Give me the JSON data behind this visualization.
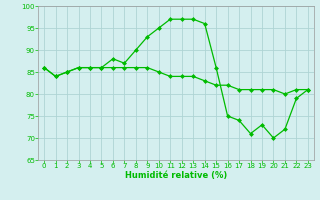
{
  "title": "",
  "xlabel": "Humidité relative (%)",
  "ylabel": "",
  "background_color": "#d4efef",
  "grid_color": "#aed4d4",
  "line_color": "#00bb00",
  "xlim_min": -0.5,
  "xlim_max": 23.5,
  "ylim_min": 65,
  "ylim_max": 100,
  "yticks": [
    65,
    70,
    75,
    80,
    85,
    90,
    95,
    100
  ],
  "xticks": [
    0,
    1,
    2,
    3,
    4,
    5,
    6,
    7,
    8,
    9,
    10,
    11,
    12,
    13,
    14,
    15,
    16,
    17,
    18,
    19,
    20,
    21,
    22,
    23
  ],
  "series1_x": [
    0,
    1,
    2,
    3,
    4,
    5,
    6,
    7,
    8,
    9,
    10,
    11,
    12,
    13,
    14,
    15,
    16,
    17,
    18,
    19,
    20,
    21,
    22,
    23
  ],
  "series1_y": [
    86,
    84,
    85,
    86,
    86,
    86,
    88,
    87,
    90,
    93,
    95,
    97,
    97,
    97,
    96,
    86,
    75,
    74,
    71,
    73,
    70,
    72,
    79,
    81
  ],
  "series2_x": [
    0,
    1,
    2,
    3,
    4,
    5,
    6,
    7,
    8,
    9,
    10,
    11,
    12,
    13,
    14,
    15,
    16,
    17,
    18,
    19,
    20,
    21,
    22,
    23
  ],
  "series2_y": [
    86,
    84,
    85,
    86,
    86,
    86,
    86,
    86,
    86,
    86,
    85,
    84,
    84,
    84,
    83,
    82,
    82,
    81,
    81,
    81,
    81,
    80,
    81,
    81
  ],
  "xlabel_fontsize": 6.0,
  "tick_fontsize": 5.0,
  "linewidth": 0.9,
  "markersize": 2.5
}
